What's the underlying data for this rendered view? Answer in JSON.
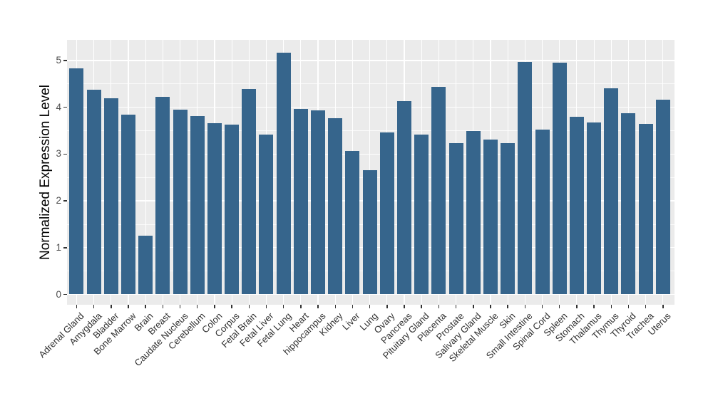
{
  "chart_data": {
    "type": "bar",
    "title": "",
    "xlabel": "",
    "ylabel": "Normalized Expression Level",
    "categories": [
      "Adrenal Gland",
      "Amygdala",
      "Bladder",
      "Bone Marrow",
      "Brain",
      "Breast",
      "Caudate Nucleus",
      "Cerebellum",
      "Colon",
      "Corpus",
      "Fetal Brain",
      "Fetal Liver",
      "Fetal Lung",
      "Heart",
      "hippocampus",
      "Kidney",
      "Liver",
      "Lung",
      "Ovary",
      "Pancreas",
      "Pituitary Gland",
      "Placenta",
      "Prostate",
      "Salivary Gland",
      "Skeletal Muscle",
      "Skin",
      "Small Intestine",
      "Spinal Cord",
      "Spleen",
      "Stomach",
      "Thalamus",
      "Thymus",
      "Thyroid",
      "Trachea",
      "Uterus"
    ],
    "values": [
      4.83,
      4.37,
      4.2,
      3.85,
      1.26,
      4.23,
      3.95,
      3.82,
      3.66,
      3.63,
      4.39,
      3.42,
      5.16,
      3.96,
      3.94,
      3.77,
      3.06,
      2.66,
      3.47,
      4.13,
      3.42,
      4.43,
      3.23,
      3.49,
      3.31,
      3.23,
      4.97,
      3.52,
      4.95,
      3.8,
      3.68,
      4.41,
      3.88,
      3.65,
      4.16
    ],
    "yticks": [
      0,
      1,
      2,
      3,
      4,
      5
    ],
    "ylim": [
      0,
      5.2
    ],
    "grid": "on",
    "legend": "none",
    "x_label_rotation_deg": 45,
    "colors": {
      "bar": "#36658C",
      "panel_background": "#EBEBEB",
      "grid": "#FFFFFF",
      "tick_mark": "#333333",
      "tick_label": "#4D4D4D",
      "axis_title": "#000000",
      "figure_background": "#FFFFFF"
    }
  }
}
